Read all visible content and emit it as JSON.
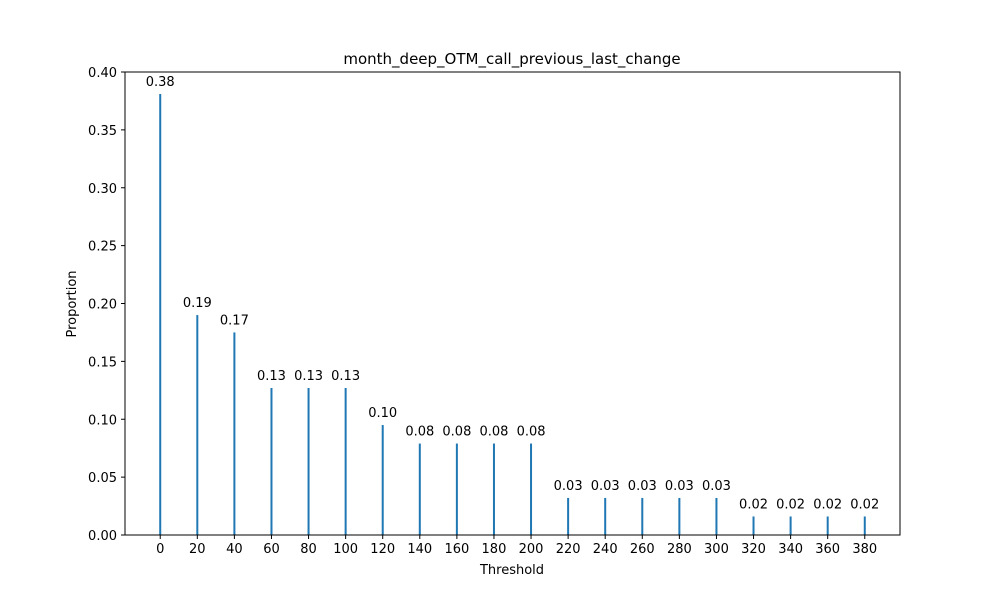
{
  "chart_data": {
    "type": "bar",
    "title": "month_deep_OTM_call_previous_last_change",
    "xlabel": "Threshold",
    "ylabel": "Proportion",
    "categories": [
      0,
      20,
      40,
      60,
      80,
      100,
      120,
      140,
      160,
      180,
      200,
      220,
      240,
      260,
      280,
      300,
      320,
      340,
      360,
      380
    ],
    "values": [
      0.381,
      0.19,
      0.175,
      0.127,
      0.127,
      0.127,
      0.095,
      0.079,
      0.079,
      0.079,
      0.079,
      0.032,
      0.032,
      0.032,
      0.032,
      0.032,
      0.016,
      0.016,
      0.016,
      0.016
    ],
    "data_labels": [
      "0.38",
      "0.19",
      "0.17",
      "0.13",
      "0.13",
      "0.13",
      "0.10",
      "0.08",
      "0.08",
      "0.08",
      "0.08",
      "0.03",
      "0.03",
      "0.03",
      "0.03",
      "0.03",
      "0.02",
      "0.02",
      "0.02",
      "0.02"
    ],
    "x_ticks": [
      "0",
      "20",
      "40",
      "60",
      "80",
      "100",
      "120",
      "140",
      "160",
      "180",
      "200",
      "220",
      "240",
      "260",
      "280",
      "300",
      "320",
      "340",
      "360",
      "380"
    ],
    "y_ticks": [
      "0.00",
      "0.05",
      "0.10",
      "0.15",
      "0.20",
      "0.25",
      "0.30",
      "0.35",
      "0.40"
    ],
    "xlim": [
      -19,
      399
    ],
    "ylim": [
      0,
      0.4
    ],
    "grid": false,
    "legend": "none",
    "bar_color": "#1f77b4"
  }
}
